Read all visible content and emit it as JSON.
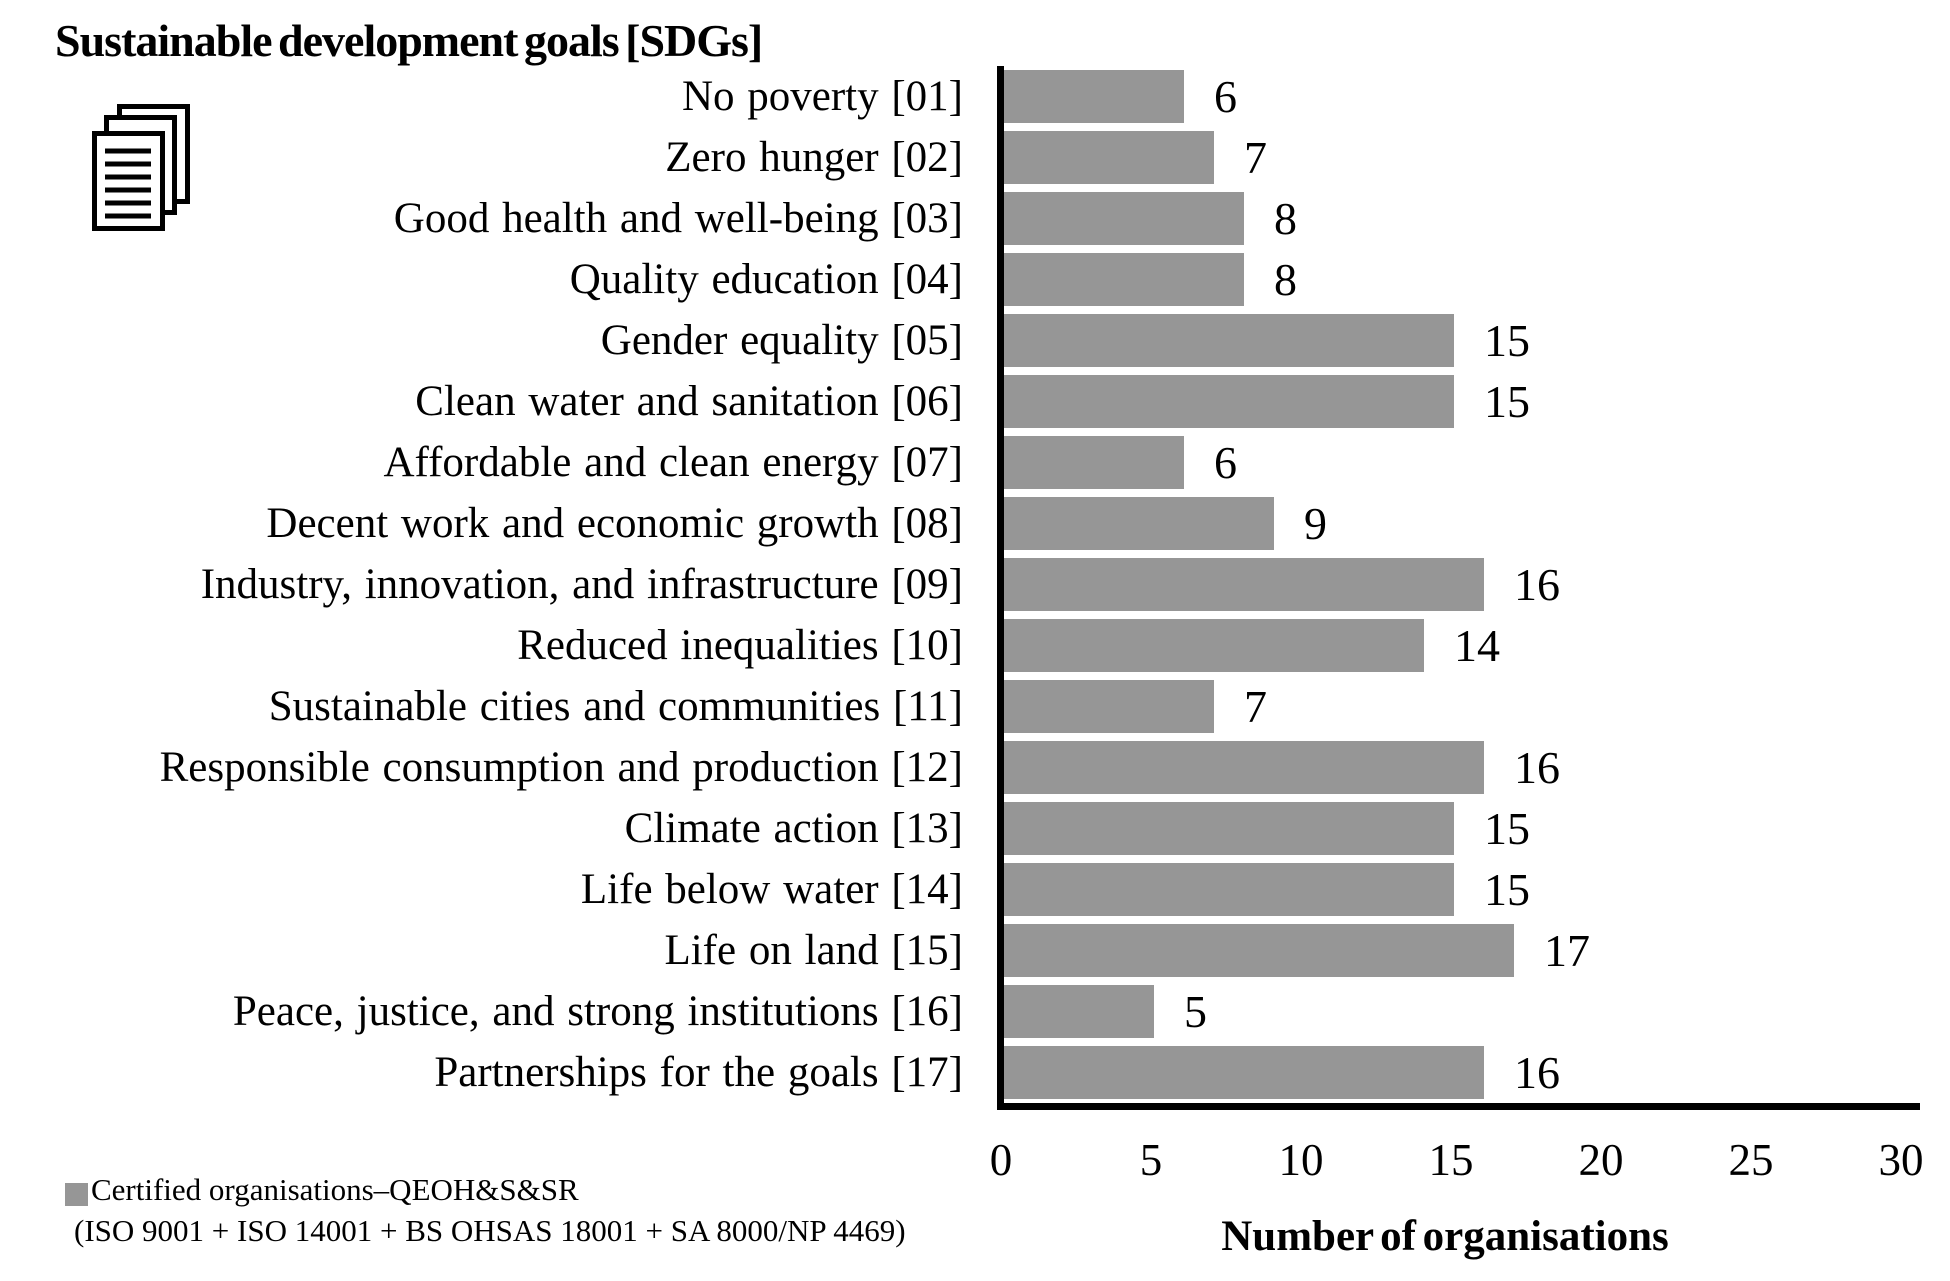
{
  "title": "Sustainable development goals [SDGs]",
  "icon": {
    "name": "stacked-documents-icon"
  },
  "chart_data": {
    "type": "bar",
    "orientation": "horizontal",
    "title": "Sustainable development goals [SDGs]",
    "categories": [
      "No poverty [01]",
      "Zero hunger [02]",
      "Good health and well-being [03]",
      "Quality education [04]",
      "Gender equality [05]",
      "Clean water and sanitation [06]",
      "Affordable and clean energy [07]",
      "Decent work and economic growth [08]",
      "Industry, innovation, and infrastructure [09]",
      "Reduced inequalities [10]",
      "Sustainable cities and communities [11]",
      "Responsible consumption and production [12]",
      "Climate action [13]",
      "Life below water [14]",
      "Life on land [15]",
      "Peace, justice, and strong institutions [16]",
      "Partnerships for the goals [17]"
    ],
    "values": [
      6,
      7,
      8,
      8,
      15,
      15,
      6,
      9,
      16,
      14,
      7,
      16,
      15,
      15,
      17,
      5,
      16
    ],
    "value_labels": true,
    "xlabel": "Number of organisations",
    "xlim": [
      0,
      30
    ],
    "xticks": [
      0,
      5,
      10,
      15,
      20,
      25,
      30
    ],
    "grid": false,
    "bar_color": "#969696",
    "axis_color": "#000000",
    "legend_position": "bottom-left",
    "legend": {
      "marker_color": "#969696",
      "label_line1": "Certified organisations–QEOH&S&SR",
      "label_line2": "(ISO 9001 + ISO 14001 + BS OHSAS 18001 + SA 8000/NP 4469)"
    }
  }
}
